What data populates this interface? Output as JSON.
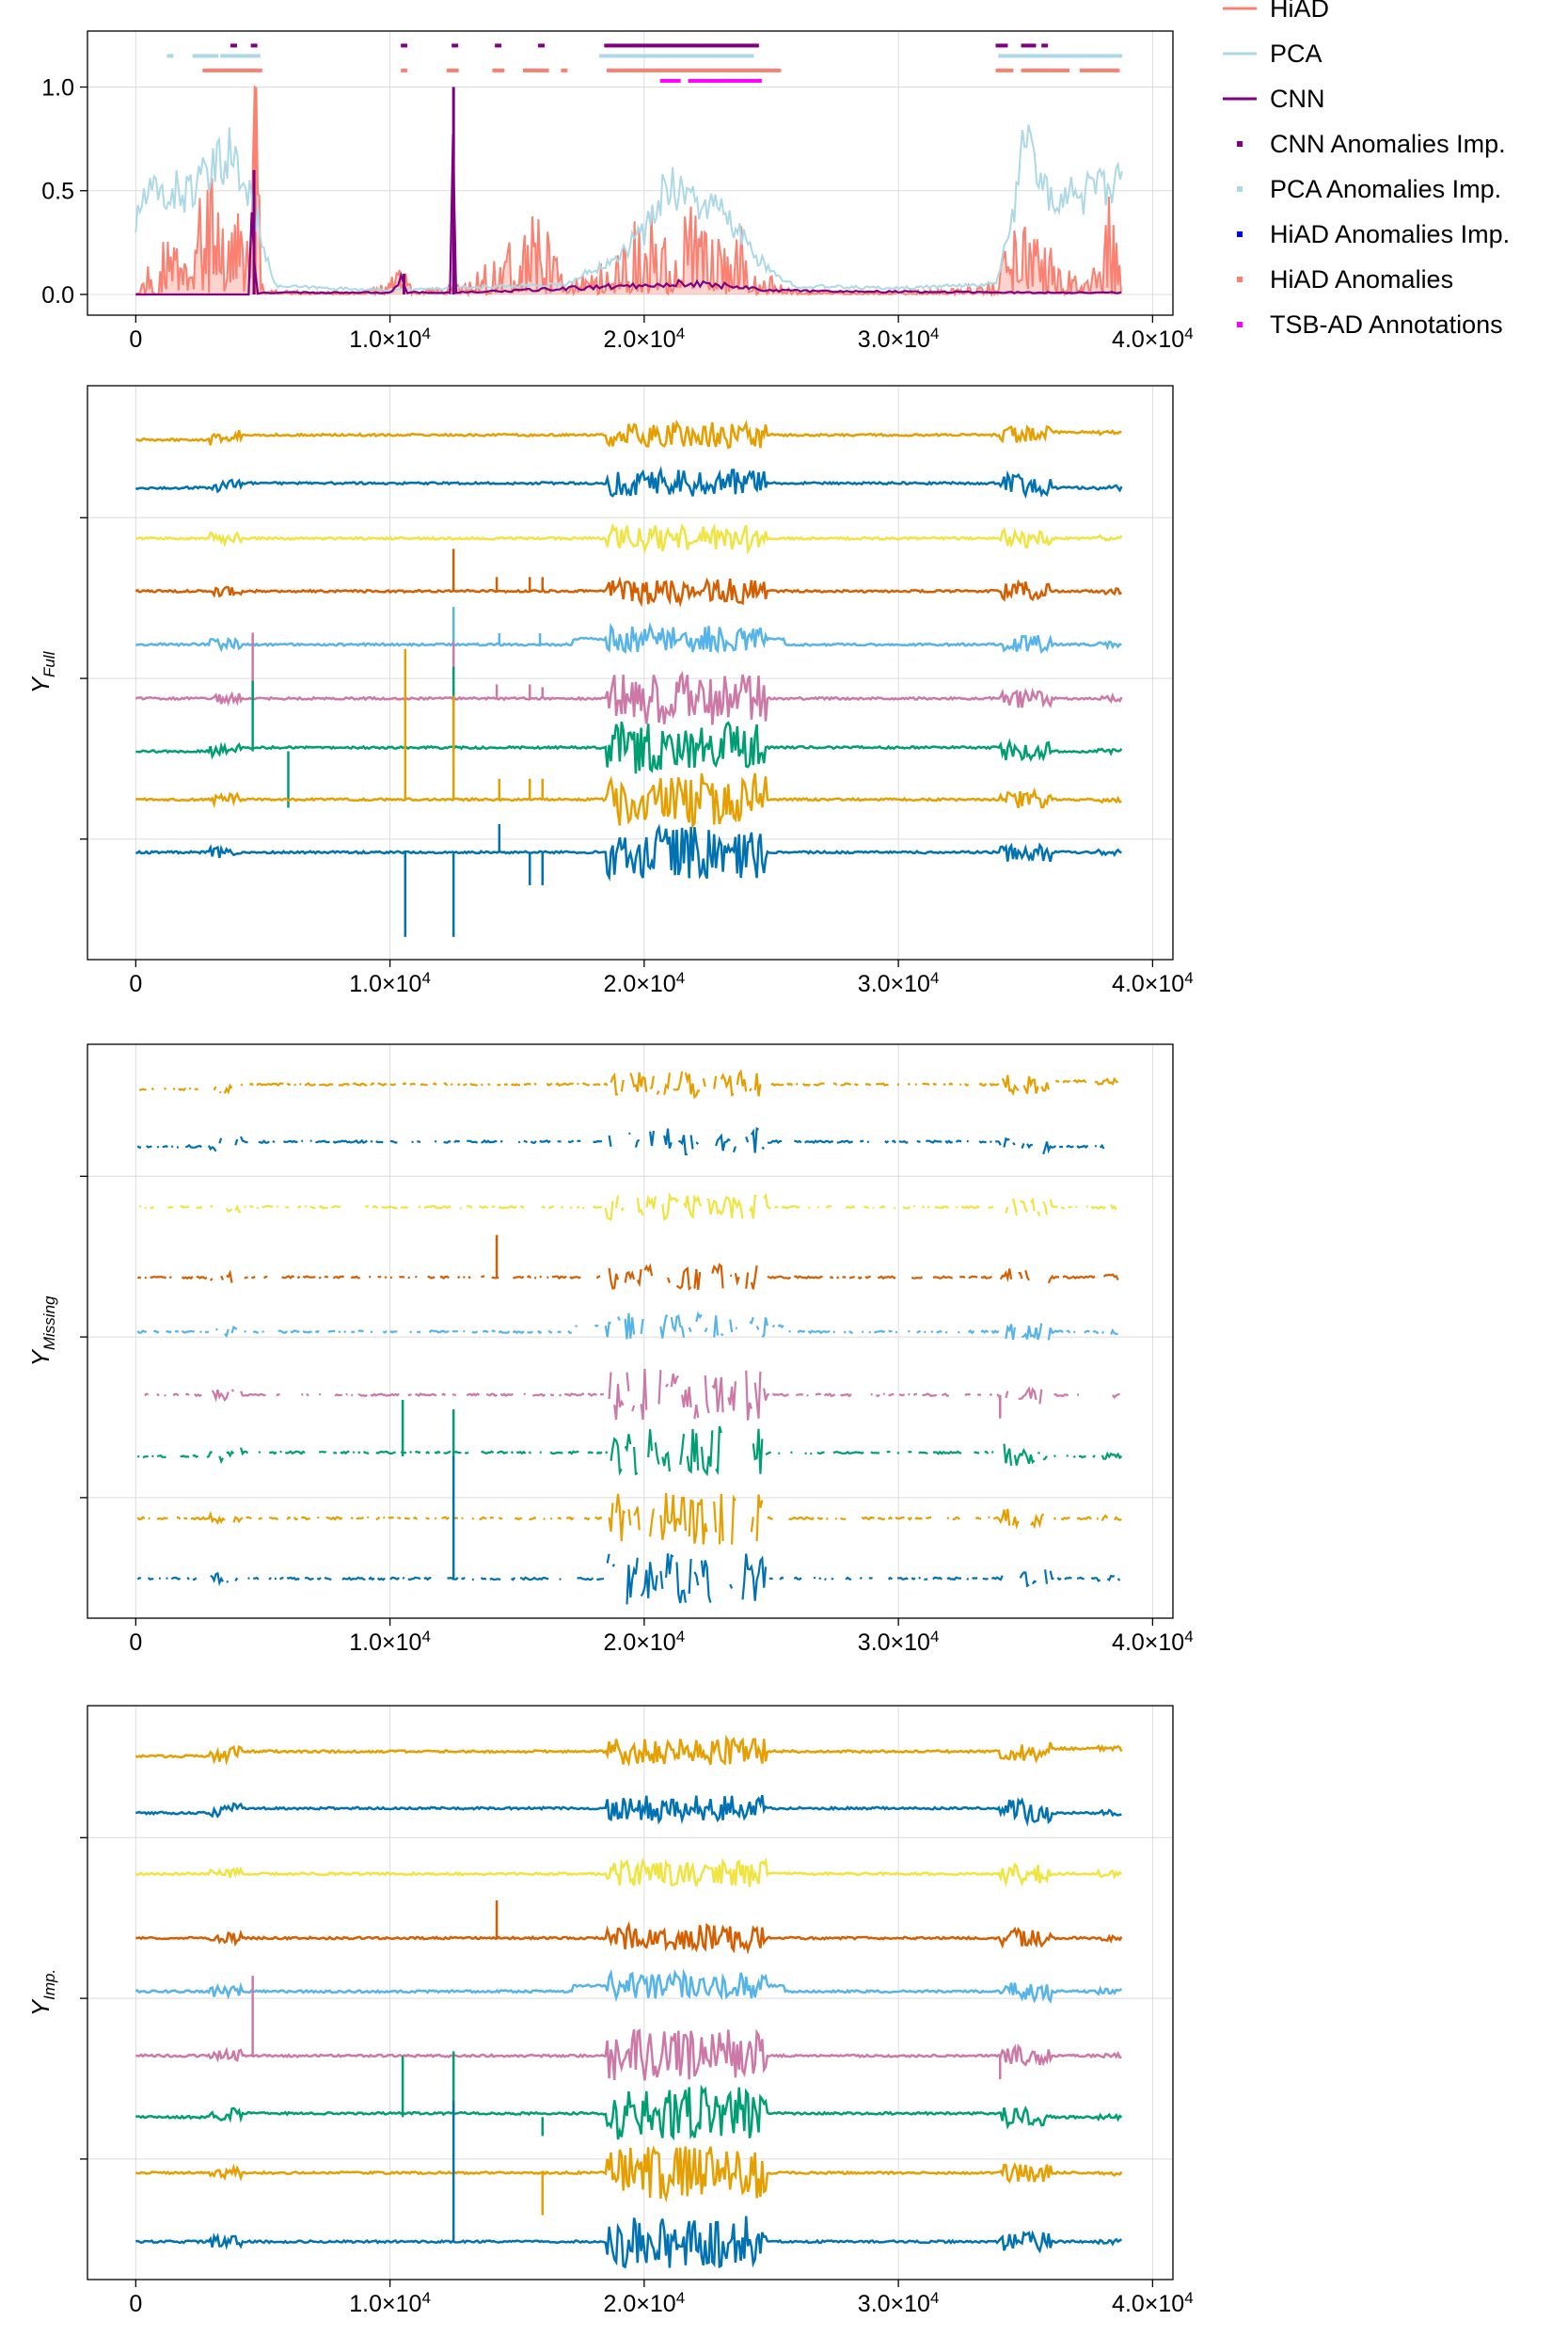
{
  "chart_data": [
    {
      "type": "line",
      "panel": "anomaly-scores",
      "xlim": [
        -1900,
        40800
      ],
      "ylim": [
        -0.1,
        1.27
      ],
      "x_ticks": [
        {
          "value": 0,
          "mant": "0",
          "exp": ""
        },
        {
          "value": 10000,
          "mant": "1.0×10",
          "exp": "4"
        },
        {
          "value": 20000,
          "mant": "2.0×10",
          "exp": "4"
        },
        {
          "value": 30000,
          "mant": "3.0×10",
          "exp": "4"
        },
        {
          "value": 40000,
          "mant": "4.0×10",
          "exp": "4"
        }
      ],
      "y_ticks": [
        {
          "value": 0.0,
          "label": "0.0"
        },
        {
          "value": 0.5,
          "label": "0.5"
        },
        {
          "value": 1.0,
          "label": "1.0"
        }
      ],
      "grid": true,
      "legend_position": "right, outside",
      "series": [
        {
          "name": "HiAD",
          "kind": "line",
          "color": "#FA8072",
          "x": [
            0,
            1000,
            2000,
            3000,
            3600,
            4200,
            4700,
            5000,
            7000,
            9000,
            10500,
            11000,
            12500,
            14000,
            15500,
            16000,
            17000,
            18500,
            19500,
            20300,
            21000,
            22000,
            23000,
            24000,
            24500,
            26000,
            30000,
            33800,
            34500,
            35000,
            35500,
            36500,
            37500,
            38300,
            38800
          ],
          "values": [
            0.05,
            0.2,
            0.3,
            0.45,
            0.35,
            0.3,
            1.0,
            0.02,
            0.01,
            0.01,
            0.1,
            0.02,
            0.03,
            0.15,
            0.3,
            0.3,
            0.05,
            0.15,
            0.25,
            0.4,
            0.2,
            0.35,
            0.2,
            0.3,
            0.1,
            0.01,
            0.01,
            0.05,
            0.3,
            0.35,
            0.25,
            0.1,
            0.05,
            0.4,
            0.05
          ]
        },
        {
          "name": "PCA",
          "kind": "line",
          "color": "#ADD8E6",
          "x": [
            0,
            300,
            1000,
            2000,
            2800,
            3200,
            3600,
            4200,
            4800,
            5500,
            10000,
            17000,
            18000,
            19000,
            20000,
            21000,
            22000,
            23000,
            24000,
            25000,
            26000,
            30000,
            33800,
            34400,
            35000,
            35500,
            36500,
            38000,
            38800
          ],
          "values": [
            0.33,
            0.47,
            0.48,
            0.5,
            0.55,
            0.6,
            0.7,
            0.55,
            0.35,
            0.04,
            0.02,
            0.05,
            0.12,
            0.2,
            0.3,
            0.55,
            0.45,
            0.4,
            0.25,
            0.1,
            0.04,
            0.03,
            0.05,
            0.3,
            0.85,
            0.5,
            0.48,
            0.5,
            0.52
          ]
        },
        {
          "name": "CNN",
          "kind": "line",
          "color": "#800080",
          "x": [
            0,
            4500,
            4600,
            4700,
            5000,
            10000,
            10500,
            10600,
            12400,
            12500,
            12600,
            15000,
            20000,
            21000,
            23000,
            24000,
            25000,
            35000,
            38800
          ],
          "values": [
            0.0,
            0.0,
            0.6,
            0.0,
            0.01,
            0.01,
            0.1,
            0.01,
            0.01,
            1.0,
            0.01,
            0.02,
            0.05,
            0.06,
            0.05,
            0.04,
            0.02,
            0.01,
            0.01
          ]
        },
        {
          "name": "CNN Anomalies Imp.",
          "kind": "marker",
          "color": "#800080",
          "y": 1.2,
          "ranges": [
            [
              3800,
              4000
            ],
            [
              4600,
              4800
            ],
            [
              10500,
              10700
            ],
            [
              12500,
              12700
            ],
            [
              14200,
              14400
            ],
            [
              15900,
              16100
            ],
            [
              18500,
              24500
            ],
            [
              33900,
              34300
            ],
            [
              34900,
              35400
            ],
            [
              35700,
              35900
            ]
          ]
        },
        {
          "name": "PCA Anomalies Imp.",
          "kind": "marker",
          "color": "#ADD8E6",
          "y": 1.15,
          "ranges": [
            [
              1300,
              1500
            ],
            [
              2300,
              3200
            ],
            [
              3400,
              4900
            ],
            [
              18300,
              24300
            ],
            [
              34000,
              38800
            ]
          ]
        },
        {
          "name": "HiAD Anomalies Imp.",
          "kind": "marker",
          "color": "#0000FF",
          "y": null,
          "ranges": []
        },
        {
          "name": "HiAD Anomalies",
          "kind": "marker",
          "color": "#FA8072",
          "y": 1.08,
          "ranges": [
            [
              2700,
              4900
            ],
            [
              10500,
              10700
            ],
            [
              12300,
              12700
            ],
            [
              14100,
              14500
            ],
            [
              15300,
              16200
            ],
            [
              16800,
              17000
            ],
            [
              18600,
              25400
            ],
            [
              33900,
              34500
            ],
            [
              34900,
              36700
            ],
            [
              37200,
              38700
            ]
          ]
        },
        {
          "name": "TSB-AD Annotations",
          "kind": "marker",
          "color": "#FF00FF",
          "y": 1.03,
          "ranges": [
            [
              20700,
              21400
            ],
            [
              21800,
              24600
            ]
          ]
        }
      ]
    },
    {
      "type": "line",
      "panel": "Y-Full",
      "ylabel": "Y",
      "ylabel_sub": "Full",
      "xlim": [
        -1900,
        40800
      ],
      "x_ticks": [
        {
          "value": 0,
          "mant": "0",
          "exp": ""
        },
        {
          "value": 10000,
          "mant": "1.0×10",
          "exp": "4"
        },
        {
          "value": 20000,
          "mant": "2.0×10",
          "exp": "4"
        },
        {
          "value": 30000,
          "mant": "3.0×10",
          "exp": "4"
        },
        {
          "value": 40000,
          "mant": "4.0×10",
          "exp": "4"
        }
      ],
      "grid": true,
      "traces": [
        {
          "color": "#E69F00",
          "level": 0.906
        },
        {
          "color": "#0072B2",
          "level": 0.822
        },
        {
          "color": "#F0E442",
          "level": 0.734
        },
        {
          "color": "#D55E00",
          "level": 0.642
        },
        {
          "color": "#56B4E9",
          "level": 0.549
        },
        {
          "color": "#CC79A7",
          "level": 0.455
        },
        {
          "color": "#009E73",
          "level": 0.363
        },
        {
          "color": "#E69F00",
          "level": 0.279
        },
        {
          "color": "#0072B2",
          "level": 0.187
        }
      ]
    },
    {
      "type": "line",
      "panel": "Y-Missing",
      "ylabel": "Y",
      "ylabel_sub": "Missing",
      "xlim": [
        -1900,
        40800
      ],
      "x_ticks": [
        {
          "value": 0,
          "mant": "0",
          "exp": ""
        },
        {
          "value": 10000,
          "mant": "1.0×10",
          "exp": "4"
        },
        {
          "value": 20000,
          "mant": "2.0×10",
          "exp": "4"
        },
        {
          "value": 30000,
          "mant": "3.0×10",
          "exp": "4"
        },
        {
          "value": 40000,
          "mant": "4.0×10",
          "exp": "4"
        }
      ],
      "grid": true,
      "traces": [
        {
          "color": "#E69F00",
          "level": 0.922
        },
        {
          "color": "#0072B2",
          "level": 0.822
        },
        {
          "color": "#F0E442",
          "level": 0.716
        },
        {
          "color": "#D55E00",
          "level": 0.594
        },
        {
          "color": "#56B4E9",
          "level": 0.499
        },
        {
          "color": "#CC79A7",
          "level": 0.389
        },
        {
          "color": "#009E73",
          "level": 0.282
        },
        {
          "color": "#E69F00",
          "level": 0.174
        },
        {
          "color": "#0072B2",
          "level": 0.069
        }
      ]
    },
    {
      "type": "line",
      "panel": "Y-Imp",
      "ylabel": "Y",
      "ylabel_sub": "Imp.",
      "xlim": [
        -1900,
        40800
      ],
      "x_ticks": [
        {
          "value": 0,
          "mant": "0",
          "exp": ""
        },
        {
          "value": 10000,
          "mant": "1.0×10",
          "exp": "4"
        },
        {
          "value": 20000,
          "mant": "2.0×10",
          "exp": "4"
        },
        {
          "value": 30000,
          "mant": "3.0×10",
          "exp": "4"
        },
        {
          "value": 40000,
          "mant": "4.0×10",
          "exp": "4"
        }
      ],
      "grid": true,
      "traces": [
        {
          "color": "#E69F00",
          "level": 0.912
        },
        {
          "color": "#0072B2",
          "level": 0.813
        },
        {
          "color": "#F0E442",
          "level": 0.707
        },
        {
          "color": "#D55E00",
          "level": 0.595
        },
        {
          "color": "#56B4E9",
          "level": 0.502
        },
        {
          "color": "#CC79A7",
          "level": 0.39
        },
        {
          "color": "#009E73",
          "level": 0.283
        },
        {
          "color": "#E69F00",
          "level": 0.186
        },
        {
          "color": "#0072B2",
          "level": 0.066
        }
      ]
    }
  ]
}
